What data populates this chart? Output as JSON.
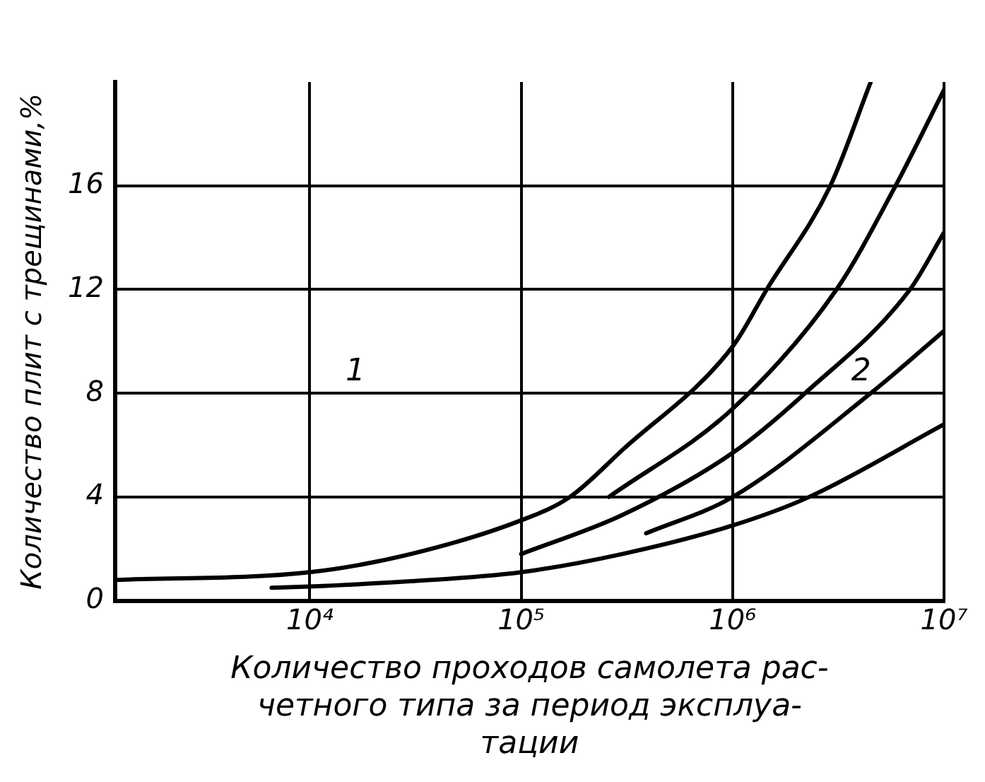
{
  "chart_data": {
    "type": "line",
    "xlabel": "Количество проходов самолета рас-\nчетного типа за период эксплуа-\nтации",
    "ylabel": "Количество плит с трещинами,%",
    "log": "x",
    "grid": true,
    "legend": false,
    "marker": "none",
    "line_style": "solid",
    "xlim": [
      1200,
      10000000
    ],
    "ylim": [
      0,
      20
    ],
    "xticks": [
      {
        "value": 10000,
        "label": "10⁴"
      },
      {
        "value": 100000,
        "label": "10⁵"
      },
      {
        "value": 1000000,
        "label": "10⁶"
      },
      {
        "value": 10000000,
        "label": "10⁷"
      }
    ],
    "yticks": [
      0,
      4,
      8,
      12,
      16
    ],
    "annotations": [
      "1",
      "2"
    ],
    "series": [
      {
        "color": "#000000",
        "x": [
          1200,
          10000,
          30000,
          100000,
          170000,
          300000,
          1000000,
          1450000,
          2900000,
          4500000
        ],
        "values": [
          0.8,
          1.1,
          1.8,
          3.1,
          4,
          5.8,
          9.8,
          12,
          16,
          20
        ]
      },
      {
        "color": "#000000",
        "x": [
          260000,
          1000000,
          3100000,
          5900000,
          10000000
        ],
        "values": [
          4,
          7.4,
          12,
          16,
          19.7
        ]
      },
      {
        "color": "#000000",
        "x": [
          100000,
          300000,
          1000000,
          2200000,
          6900000,
          10000000
        ],
        "values": [
          1.8,
          3.3,
          5.7,
          8,
          12,
          14.2
        ]
      },
      {
        "color": "#000000",
        "x": [
          390000,
          1000000,
          4500000,
          10000000
        ],
        "values": [
          2.6,
          4,
          8,
          10.4
        ]
      },
      {
        "color": "#000000",
        "x": [
          6600,
          10000,
          30000,
          100000,
          300000,
          1000000,
          2300000,
          10000000
        ],
        "values": [
          0.5,
          0.55,
          0.75,
          1.1,
          1.8,
          2.9,
          4,
          6.8
        ]
      }
    ]
  }
}
